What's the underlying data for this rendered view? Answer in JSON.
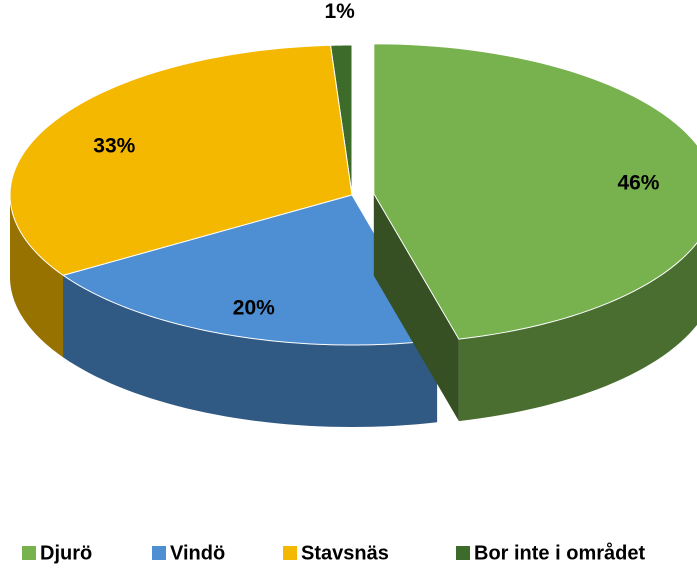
{
  "chart_data": {
    "type": "pie3d",
    "categories": [
      "Djurö",
      "Vindö",
      "Stavsnäs",
      "Bor inte i området"
    ],
    "values": [
      46,
      20,
      33,
      1
    ],
    "value_labels": [
      "46%",
      "20%",
      "33%",
      "1%"
    ],
    "colors": [
      "#77b24e",
      "#4e8fd4",
      "#f5b800",
      "#3d6b2a"
    ],
    "legend": "bottom"
  }
}
